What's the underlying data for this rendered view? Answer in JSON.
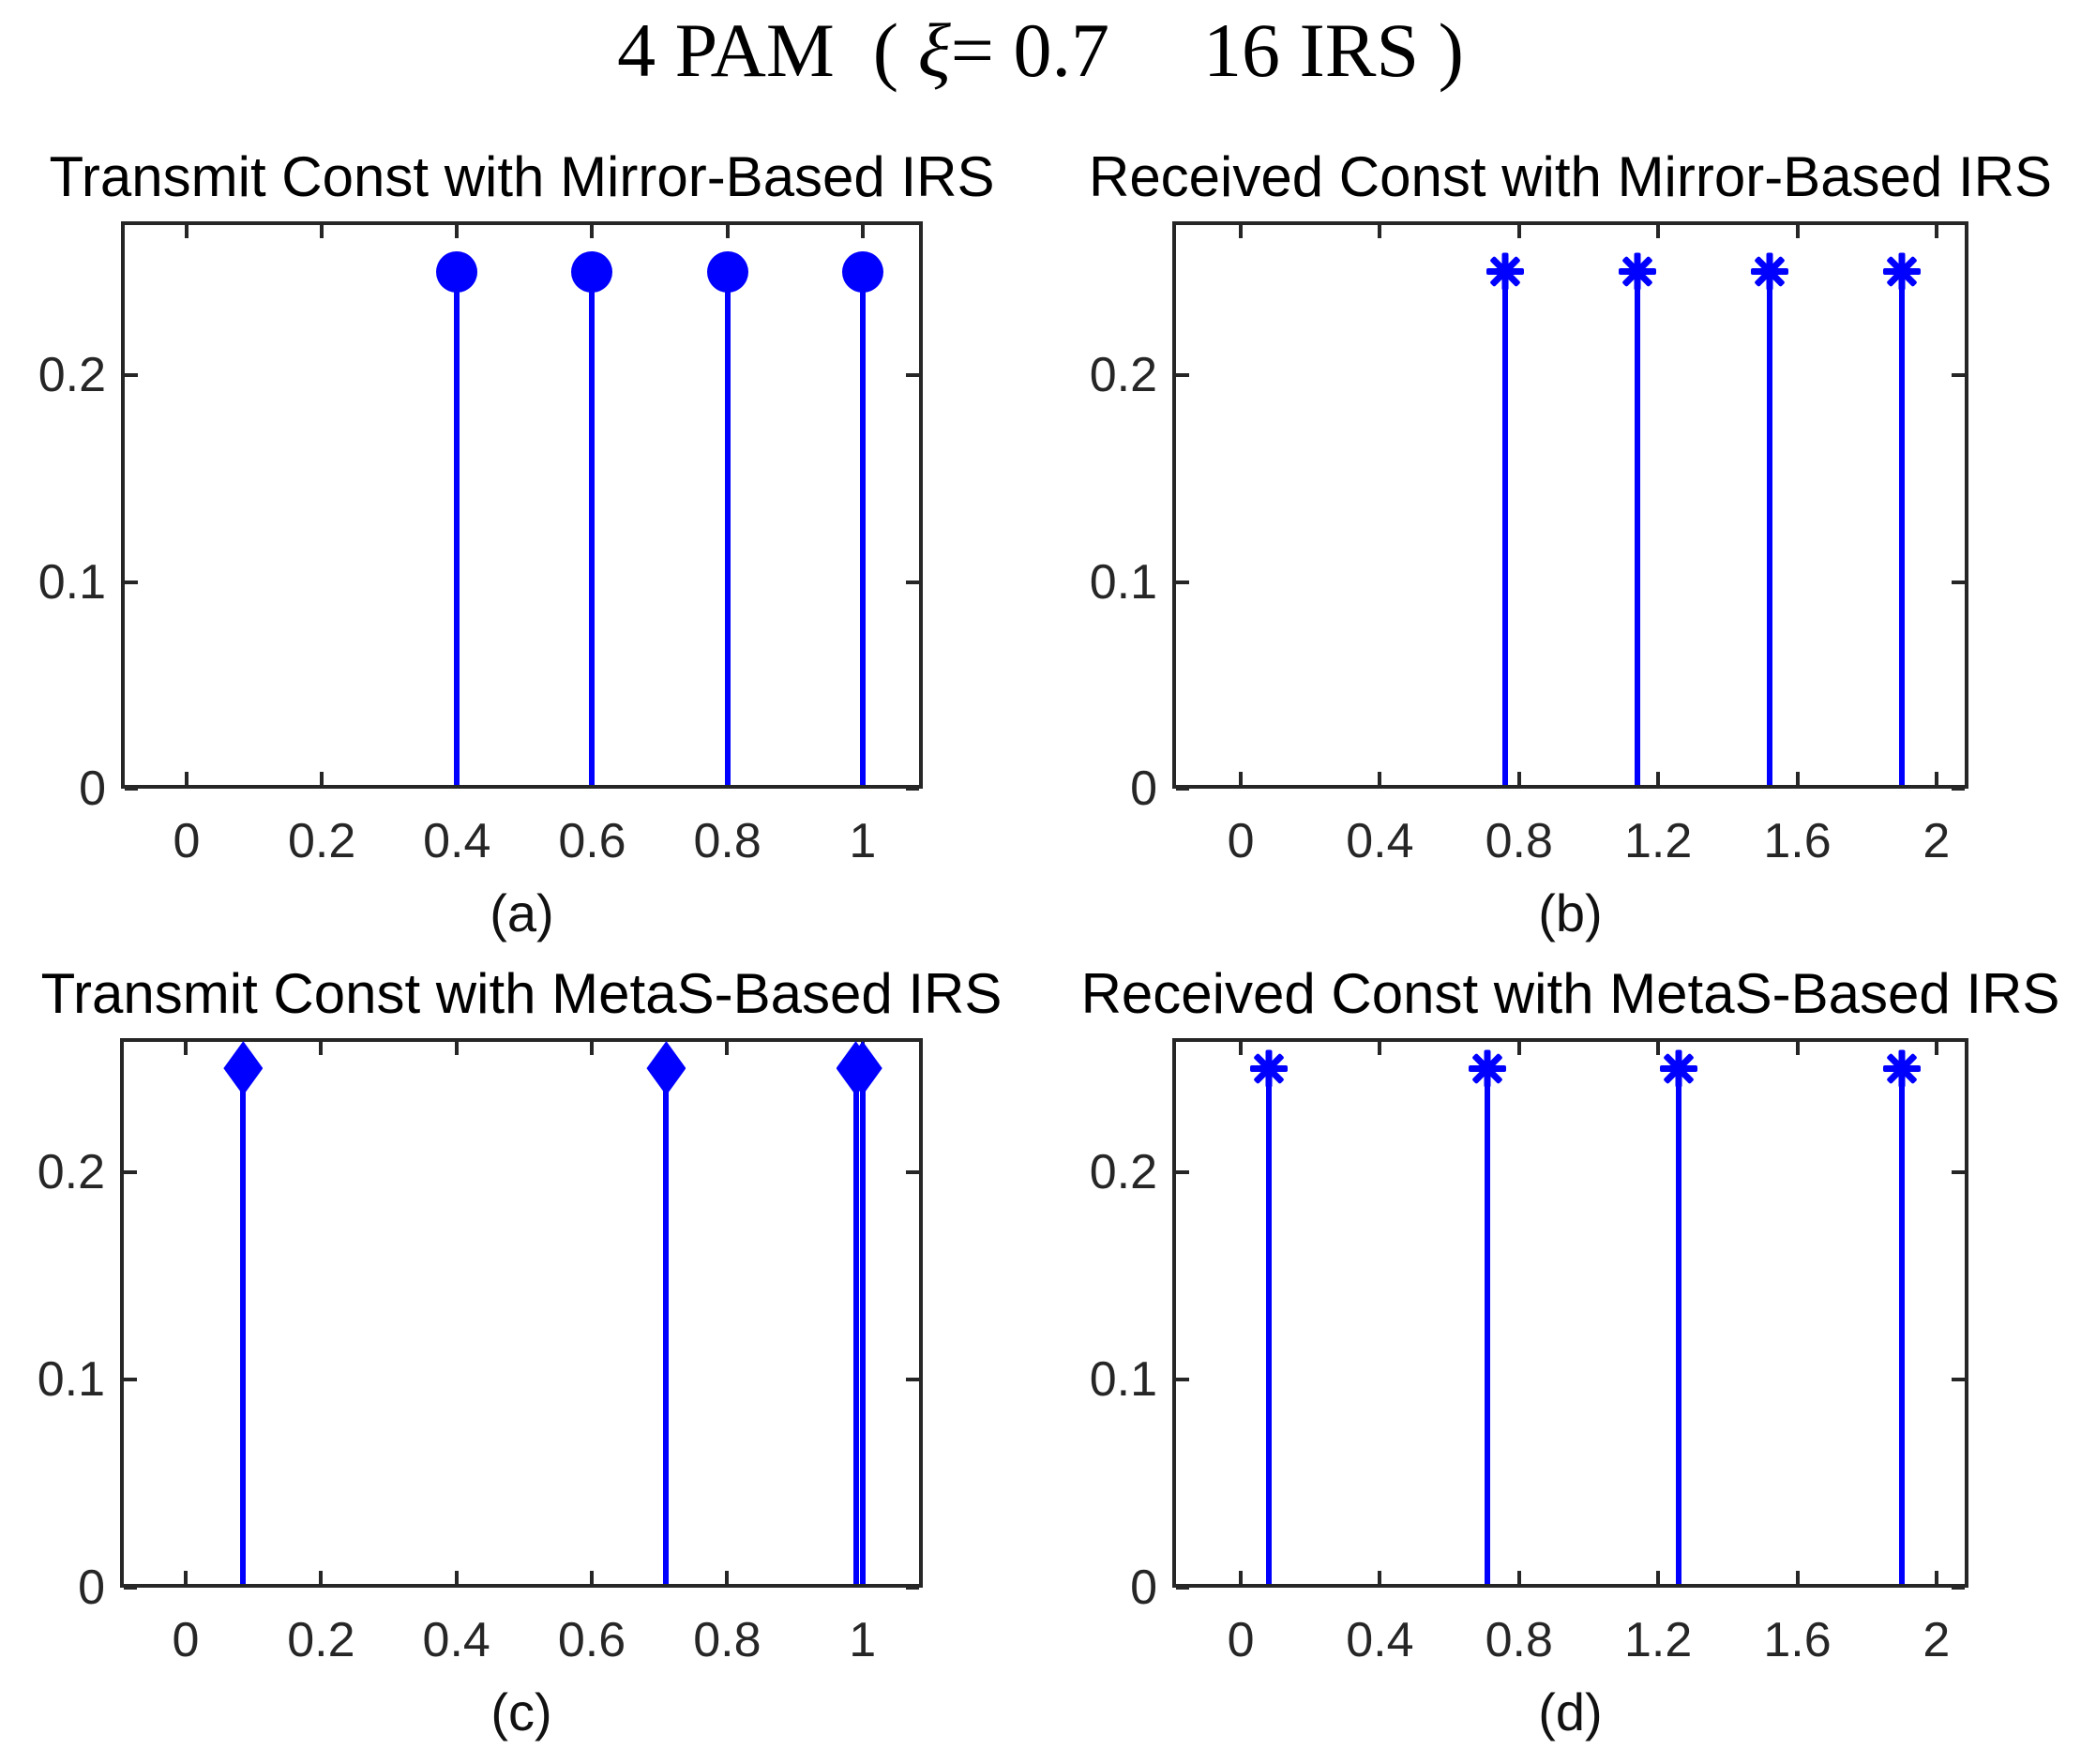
{
  "figure_title": {
    "part1": "4 PAM  ( ",
    "xi": "ξ",
    "part2": "= 0.7",
    "part3": "16 IRS )"
  },
  "colors": {
    "stem_blue": "#0000ff",
    "axis_gray": "#262626",
    "title_black": "#000000"
  },
  "chart_data": [
    {
      "id": "a",
      "type": "stem",
      "title": "Transmit Const with Mirror-Based IRS",
      "panel_label": "(a)",
      "marker": "circle",
      "x": [
        0.4,
        0.6,
        0.8,
        1.0
      ],
      "y": [
        0.25,
        0.25,
        0.25,
        0.25
      ],
      "xlim": [
        -0.097,
        1.089
      ],
      "ylim": [
        0,
        0.2745
      ],
      "xticks": [
        0,
        0.2,
        0.4,
        0.6,
        0.8,
        1
      ],
      "xtick_labels": [
        "0",
        "0.2",
        "0.4",
        "0.6",
        "0.8",
        "1"
      ],
      "yticks": [
        0,
        0.1,
        0.2
      ],
      "ytick_labels": [
        "0",
        "0.1",
        "0.2"
      ],
      "grid": false,
      "legend": null
    },
    {
      "id": "b",
      "type": "stem",
      "title": "Received Const with Mirror-Based IRS",
      "panel_label": "(b)",
      "marker": "asterisk",
      "x": [
        0.76,
        1.14,
        1.52,
        1.9
      ],
      "y": [
        0.25,
        0.25,
        0.25,
        0.25
      ],
      "xlim": [
        -0.197,
        2.092
      ],
      "ylim": [
        0,
        0.2745
      ],
      "xticks": [
        0,
        0.4,
        0.8,
        1.2,
        1.6,
        2
      ],
      "xtick_labels": [
        "0",
        "0.4",
        "0.8",
        "1.2",
        "1.6",
        "2"
      ],
      "yticks": [
        0,
        0.1,
        0.2
      ],
      "ytick_labels": [
        "0",
        "0.1",
        "0.2"
      ],
      "grid": false,
      "legend": null
    },
    {
      "id": "c",
      "type": "stem",
      "title": "Transmit Const with MetaS-Based IRS",
      "panel_label": "(c)",
      "marker": "diamond",
      "x": [
        0.085,
        0.71,
        0.99,
        1.0
      ],
      "y": [
        0.25,
        0.25,
        0.25,
        0.25
      ],
      "xlim": [
        -0.097,
        1.089
      ],
      "ylim": [
        0,
        0.2645
      ],
      "xticks": [
        0,
        0.2,
        0.4,
        0.6,
        0.8,
        1
      ],
      "xtick_labels": [
        "0",
        "0.2",
        "0.4",
        "0.6",
        "0.8",
        "1"
      ],
      "yticks": [
        0,
        0.1,
        0.2
      ],
      "ytick_labels": [
        "0",
        "0.1",
        "0.2"
      ],
      "grid": false,
      "legend": null
    },
    {
      "id": "d",
      "type": "stem",
      "title": "Received Const with MetaS-Based IRS",
      "panel_label": "(d)",
      "marker": "asterisk",
      "x": [
        0.08,
        0.71,
        1.26,
        1.9
      ],
      "y": [
        0.25,
        0.25,
        0.25,
        0.25
      ],
      "xlim": [
        -0.197,
        2.092
      ],
      "ylim": [
        0,
        0.2645
      ],
      "xticks": [
        0,
        0.4,
        0.8,
        1.2,
        1.6,
        2
      ],
      "xtick_labels": [
        "0",
        "0.4",
        "0.8",
        "1.2",
        "1.6",
        "2"
      ],
      "yticks": [
        0,
        0.1,
        0.2
      ],
      "ytick_labels": [
        "0",
        "0.1",
        "0.2"
      ],
      "grid": false,
      "legend": null
    }
  ]
}
